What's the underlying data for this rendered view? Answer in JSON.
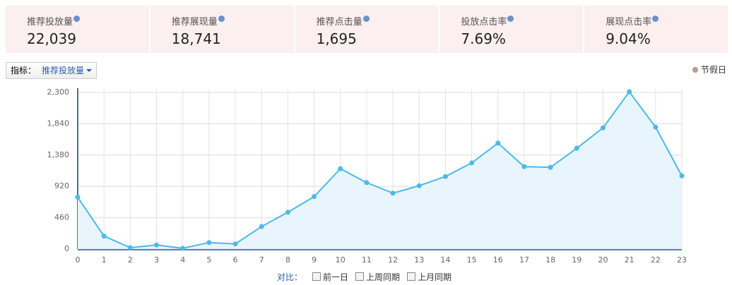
{
  "metrics": [
    {
      "label": "推荐投放量",
      "value": "22,039"
    },
    {
      "label": "推荐展现量",
      "value": "18,741"
    },
    {
      "label": "推荐点击量",
      "value": "1,695"
    },
    {
      "label": "投放点击率",
      "value": "7.69%"
    },
    {
      "label": "展现点击率",
      "value": "9.04%"
    }
  ],
  "metric_selector": {
    "label": "指标：",
    "value": "推荐投放量"
  },
  "holiday_legend": "节假日",
  "chart_data": {
    "type": "line",
    "color": "#4cb9e8",
    "fill": "#e9f5fc",
    "grid": true,
    "categories": [
      "0",
      "1",
      "2",
      "3",
      "4",
      "5",
      "6",
      "7",
      "8",
      "9",
      "10",
      "11",
      "12",
      "13",
      "14",
      "15",
      "16",
      "17",
      "18",
      "19",
      "20",
      "21",
      "22",
      "23"
    ],
    "values": [
      760,
      190,
      20,
      60,
      10,
      95,
      75,
      330,
      540,
      770,
      1180,
      975,
      820,
      930,
      1065,
      1265,
      1555,
      1210,
      1200,
      1480,
      1780,
      2310,
      1790,
      1075
    ],
    "ylim": [
      0,
      2300
    ],
    "yticks": [
      0,
      460,
      920,
      {
        "value": 1380,
        "label": "1,380"
      },
      {
        "value": 1840,
        "label": "1,840"
      },
      {
        "value": 2300,
        "label": "2,300"
      }
    ]
  },
  "compare": {
    "label": "对比：",
    "options": [
      "前一日",
      "上周同期",
      "上月同期"
    ]
  }
}
